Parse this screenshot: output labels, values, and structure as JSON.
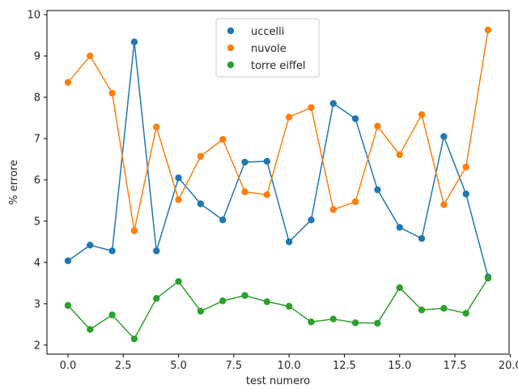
{
  "chart_data": {
    "type": "line",
    "xlabel": "test numero",
    "ylabel": "% errore",
    "xlim": [
      -0.95,
      19.95
    ],
    "ylim": [
      1.78,
      10.1
    ],
    "xticks": [
      0.0,
      2.5,
      5.0,
      7.5,
      10.0,
      12.5,
      15.0,
      17.5,
      20.0
    ],
    "xtick_labels": [
      "0.0",
      "2.5",
      "5.0",
      "7.5",
      "10.0",
      "12.5",
      "15.0",
      "17.5",
      "20.0"
    ],
    "yticks": [
      2,
      3,
      4,
      5,
      6,
      7,
      8,
      9,
      10
    ],
    "ytick_labels": [
      "2",
      "3",
      "4",
      "5",
      "6",
      "7",
      "8",
      "9",
      "10"
    ],
    "legend_position": "top-center",
    "grid": false,
    "x": [
      0,
      1,
      2,
      3,
      4,
      5,
      6,
      7,
      8,
      9,
      10,
      11,
      12,
      13,
      14,
      15,
      16,
      17,
      18,
      19
    ],
    "series": [
      {
        "name": "uccelli",
        "color": "#1f77b4",
        "values": [
          4.04,
          4.42,
          4.28,
          9.34,
          4.28,
          6.05,
          5.42,
          5.03,
          6.43,
          6.45,
          4.5,
          5.03,
          7.85,
          7.48,
          5.76,
          4.85,
          4.58,
          7.05,
          5.66,
          3.65
        ]
      },
      {
        "name": "nuvole",
        "color": "#ff7f0e",
        "values": [
          8.36,
          9.0,
          8.1,
          4.77,
          7.28,
          5.52,
          6.57,
          6.98,
          5.71,
          5.64,
          7.52,
          7.75,
          5.28,
          5.47,
          7.3,
          6.61,
          7.58,
          5.4,
          6.31,
          9.63
        ]
      },
      {
        "name": "torre eiffel",
        "color": "#2ca02c",
        "values": [
          2.96,
          2.38,
          2.73,
          2.15,
          3.13,
          3.54,
          2.82,
          3.07,
          3.2,
          3.05,
          2.94,
          2.56,
          2.63,
          2.54,
          2.53,
          3.39,
          2.85,
          2.89,
          2.77,
          3.62
        ]
      }
    ]
  }
}
